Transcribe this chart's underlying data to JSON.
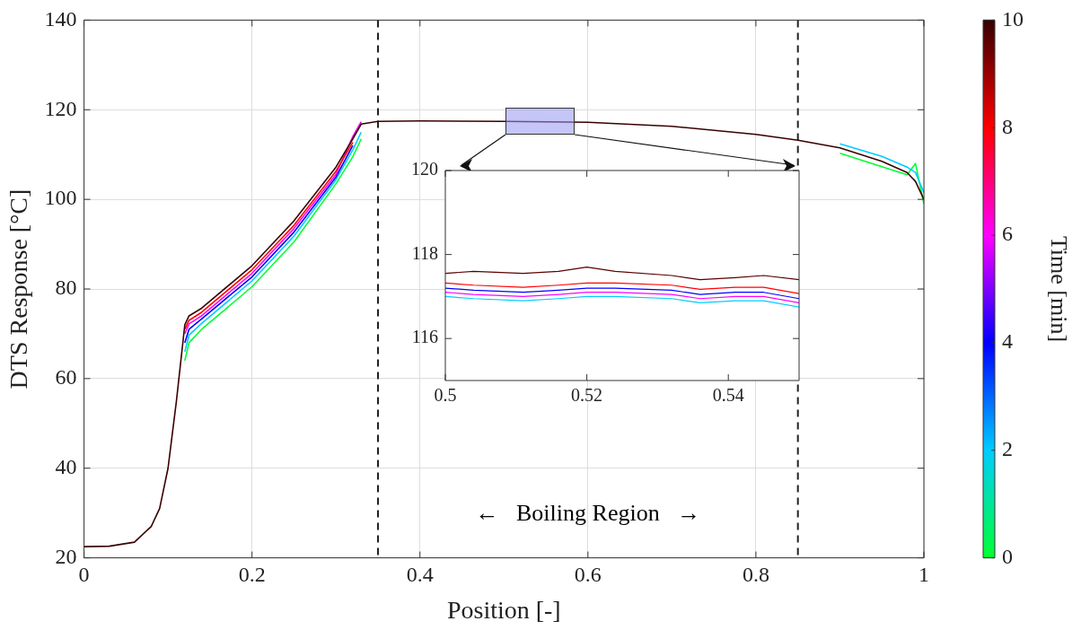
{
  "chart_data": [
    {
      "type": "line",
      "xlabel": "Position [-]",
      "ylabel": "DTS Response [°C]",
      "clabel": "Time [min]",
      "clim": [
        0,
        10
      ],
      "cticks": [
        0,
        2,
        4,
        6,
        8,
        10
      ],
      "x": [
        0,
        0.03,
        0.06,
        0.08,
        0.09,
        0.1,
        0.11,
        0.12,
        0.125,
        0.14,
        0.2,
        0.25,
        0.3,
        0.32,
        0.33,
        0.35,
        0.4,
        0.5,
        0.6,
        0.7,
        0.8,
        0.85,
        0.9,
        0.95,
        0.98,
        0.99,
        1
      ],
      "xlim": [
        0,
        1
      ],
      "xticks": [
        0,
        0.2,
        0.4,
        0.6,
        0.8,
        1
      ],
      "ylim": [
        20,
        140
      ],
      "yticks": [
        20,
        40,
        60,
        80,
        100,
        120,
        140
      ],
      "grid": true,
      "legend": false,
      "marker": "none",
      "line_style": "solid",
      "series": [
        {
          "color": "#00ff33",
          "values": [
            null,
            null,
            null,
            null,
            null,
            null,
            null,
            64,
            68,
            71,
            80.5,
            90.5,
            103.5,
            109.5,
            113.5,
            null,
            null,
            null,
            null,
            null,
            null,
            null,
            110.3,
            107.3,
            105.5,
            108,
            99
          ]
        },
        {
          "color": "#00ccff",
          "values": [
            null,
            null,
            null,
            null,
            null,
            null,
            null,
            66,
            69.7,
            72.3,
            81.8,
            91.8,
            104.4,
            111,
            115,
            null,
            null,
            null,
            null,
            null,
            null,
            null,
            112.4,
            109.6,
            107.2,
            106,
            101.5
          ]
        },
        {
          "color": "#0000ff",
          "values": [
            null,
            null,
            null,
            null,
            null,
            null,
            null,
            68,
            71,
            73.3,
            82.7,
            92.7,
            105,
            112,
            null,
            null,
            null,
            null,
            null,
            null,
            null,
            null,
            null,
            null,
            null,
            null,
            null
          ]
        },
        {
          "color": "#ff00ff",
          "values": [
            null,
            null,
            null,
            null,
            null,
            null,
            null,
            70,
            72.2,
            74,
            83.5,
            93.5,
            105.6,
            114,
            117.3,
            null,
            null,
            null,
            null,
            null,
            null,
            null,
            null,
            null,
            null,
            null,
            null
          ]
        },
        {
          "color": "#ff0000",
          "values": [
            null,
            null,
            null,
            null,
            null,
            null,
            null,
            71,
            73,
            74.8,
            84.3,
            94.2,
            106.3,
            112.7,
            null,
            null,
            null,
            null,
            null,
            null,
            null,
            null,
            null,
            null,
            null,
            null,
            null
          ]
        },
        {
          "color": "#3a0000",
          "values": [
            22.5,
            22.6,
            23.5,
            27,
            31,
            40,
            55,
            72,
            74,
            75.7,
            85.2,
            95.2,
            107.2,
            113.5,
            116.8,
            117.4,
            117.5,
            117.4,
            117.2,
            116.3,
            114.5,
            113.2,
            111.5,
            108.5,
            106,
            104,
            100
          ]
        }
      ],
      "ref_lines": [
        {
          "axis": "x",
          "value": 0.35,
          "line_style": "dashed",
          "color": "#222222"
        },
        {
          "axis": "x",
          "value": 0.85,
          "line_style": "dashed",
          "color": "#222222"
        }
      ],
      "annotations": [
        "←   Boiling Region   →"
      ]
    },
    {
      "type": "line",
      "x": [
        0.5,
        0.504,
        0.511,
        0.516,
        0.52,
        0.524,
        0.532,
        0.536,
        0.541,
        0.545,
        0.55
      ],
      "xlim": [
        0.5,
        0.55
      ],
      "xticks": [
        0.5,
        0.52,
        0.54
      ],
      "ylim": [
        115,
        120
      ],
      "yticks": [
        116,
        118,
        120
      ],
      "grid": false,
      "legend": false,
      "marker": "none",
      "line_style": "solid",
      "series": [
        {
          "color": "#00ccff",
          "values": [
            117.0,
            116.95,
            116.9,
            116.95,
            117.0,
            117.0,
            116.95,
            116.85,
            116.9,
            116.9,
            116.75
          ]
        },
        {
          "color": "#0000ff",
          "values": [
            117.2,
            117.15,
            117.1,
            117.15,
            117.2,
            117.2,
            117.15,
            117.05,
            117.1,
            117.1,
            116.95
          ]
        },
        {
          "color": "#ff00ff",
          "values": [
            117.1,
            117.05,
            117.0,
            117.05,
            117.1,
            117.1,
            117.05,
            116.95,
            117.0,
            117.0,
            116.85
          ]
        },
        {
          "color": "#ff0000",
          "values": [
            117.32,
            117.27,
            117.22,
            117.27,
            117.32,
            117.32,
            117.27,
            117.17,
            117.22,
            117.22,
            117.07
          ]
        },
        {
          "color": "#5a0000",
          "values": [
            117.55,
            117.6,
            117.55,
            117.6,
            117.7,
            117.6,
            117.5,
            117.4,
            117.45,
            117.5,
            117.4
          ]
        }
      ]
    }
  ]
}
